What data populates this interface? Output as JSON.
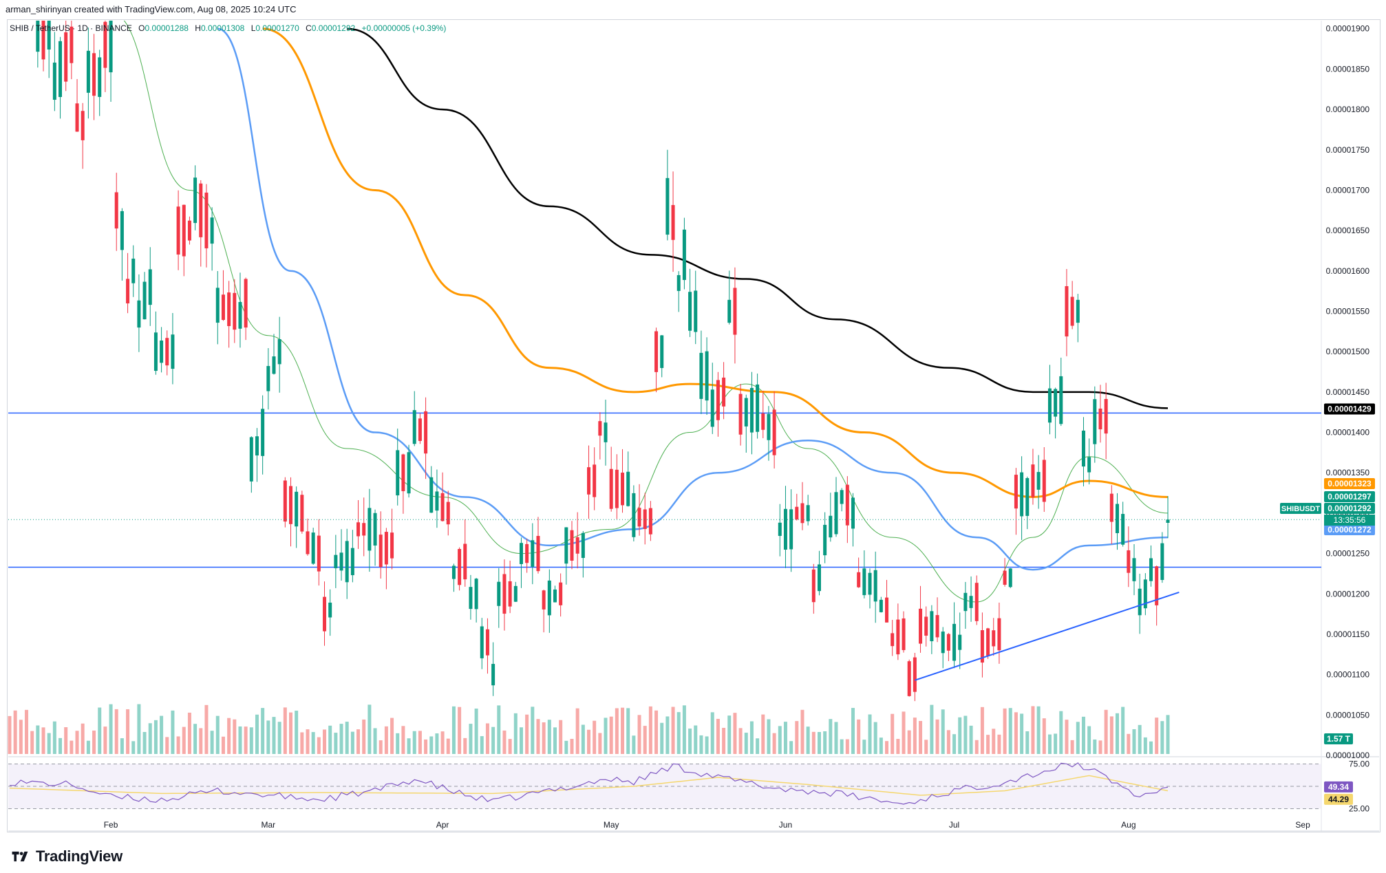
{
  "header": {
    "caption": "arman_shirinyan created with TradingView.com, Aug 08, 2025 10:24 UTC"
  },
  "legend": {
    "symbol": "SHIB / TetherUS · 1D · BINANCE",
    "open_label": "O",
    "open": "0.00001288",
    "high_label": "H",
    "high": "0.00001308",
    "low_label": "L",
    "low": "0.00001270",
    "close_label": "C",
    "close": "0.00001292",
    "change": "+0.00000005 (+0.39%)"
  },
  "footer": {
    "brand": "TradingView"
  },
  "colors": {
    "up": "#089981",
    "down": "#f23645",
    "up_vol": "#8fd3c8",
    "down_vol": "#f7a9a7",
    "ma_fast": "#4caf50",
    "ma_blue": "#5b9cf6",
    "ma_orange": "#ff9800",
    "ma_black": "#000000",
    "level_line": "#2962ff",
    "trend_line": "#2962ff",
    "rsi": "#7e57c2",
    "rsi_ma": "#f5d76e"
  },
  "chart_data": {
    "type": "candlestick",
    "symbol": "SHIBUSDT",
    "timeframe": "1D",
    "ylim": [
      1e-05,
      1.91e-05
    ],
    "x_labels": [
      "Feb",
      "Mar",
      "Apr",
      "May",
      "Jun",
      "Jul",
      "Aug",
      "Sep"
    ],
    "y_ticks": [
      "0.00001900",
      "0.00001850",
      "0.00001800",
      "0.00001750",
      "0.00001700",
      "0.00001650",
      "0.00001600",
      "0.00001550",
      "0.00001500",
      "0.00001450",
      "0.00001400",
      "0.00001350",
      "0.00001300",
      "0.00001250",
      "0.00001200",
      "0.00001150",
      "0.00001100",
      "0.00001050",
      "0.00001000"
    ],
    "price_tags": [
      {
        "label": "0.00001429",
        "value": 1.429e-05,
        "color": "#000000"
      },
      {
        "label": "0.00001323",
        "value": 1.323e-05,
        "color": "#ff9800"
      },
      {
        "label": "0.00001297",
        "value": 1.297e-05,
        "color": "#089981"
      },
      {
        "label": "0.00001292",
        "value": 1.292e-05,
        "color": "#089981"
      },
      {
        "label": "0.00001272",
        "value": 1.272e-05,
        "color": "#5b9cf6"
      }
    ],
    "current_tag": {
      "symbol": "SHIBUSDT",
      "countdown": "13:35:56"
    },
    "volume_tag": "1.57 T",
    "horizontal_levels": [
      1.424e-05,
      1.233e-05
    ],
    "trendline": {
      "from": [
        "2025-06-24",
        1.093e-05
      ],
      "to": [
        "2025-08-10",
        1.202e-05
      ]
    },
    "ohlc_anchors": [
      [
        "2025-01-15",
        1.96e-05,
        2.12e-05
      ],
      [
        "2025-01-18",
        2.05e-05,
        1.89e-05
      ],
      [
        "2025-01-21",
        1.9e-05,
        1.82e-05
      ],
      [
        "2025-01-25",
        1.88e-05,
        1.8e-05
      ],
      [
        "2025-01-27",
        1.78e-05,
        1.85e-05
      ],
      [
        "2025-01-30",
        1.84e-05,
        1.88e-05
      ],
      [
        "2025-02-01",
        1.88e-05,
        1.7e-05
      ],
      [
        "2025-02-03",
        1.65e-05,
        1.55e-05
      ],
      [
        "2025-02-05",
        1.6e-05,
        1.53e-05
      ],
      [
        "2025-02-08",
        1.58e-05,
        1.5e-05
      ],
      [
        "2025-02-12",
        1.5e-05,
        1.65e-05
      ],
      [
        "2025-02-15",
        1.65e-05,
        1.7e-05
      ],
      [
        "2025-02-19",
        1.65e-05,
        1.56e-05
      ],
      [
        "2025-02-23",
        1.55e-05,
        1.53e-05
      ],
      [
        "2025-02-25",
        1.56e-05,
        1.35e-05
      ],
      [
        "2025-02-28",
        1.4e-05,
        1.45e-05
      ],
      [
        "2025-03-03",
        1.5e-05,
        1.32e-05
      ],
      [
        "2025-03-07",
        1.3e-05,
        1.27e-05
      ],
      [
        "2025-03-10",
        1.25e-05,
        1.17e-05
      ],
      [
        "2025-03-12",
        1.18e-05,
        1.24e-05
      ],
      [
        "2025-03-16",
        1.24e-05,
        1.28e-05
      ],
      [
        "2025-03-20",
        1.28e-05,
        1.25e-05
      ],
      [
        "2025-03-23",
        1.26e-05,
        1.35e-05
      ],
      [
        "2025-03-26",
        1.35e-05,
        1.41e-05
      ],
      [
        "2025-03-29",
        1.4e-05,
        1.33e-05
      ],
      [
        "2025-04-02",
        1.3e-05,
        1.22e-05
      ],
      [
        "2025-04-05",
        1.24e-05,
        1.19e-05
      ],
      [
        "2025-04-07",
        1.2e-05,
        1.14e-05
      ],
      [
        "2025-04-09",
        1.14e-05,
        1.1e-05
      ],
      [
        "2025-04-10",
        1.1e-05,
        1.2e-05
      ],
      [
        "2025-04-14",
        1.2e-05,
        1.25e-05
      ],
      [
        "2025-04-18",
        1.25e-05,
        1.19e-05
      ],
      [
        "2025-04-22",
        1.2e-05,
        1.26e-05
      ],
      [
        "2025-04-26",
        1.26e-05,
        1.34e-05
      ],
      [
        "2025-04-28",
        1.34e-05,
        1.41e-05
      ],
      [
        "2025-04-30",
        1.4e-05,
        1.33e-05
      ],
      [
        "2025-05-04",
        1.33e-05,
        1.3e-05
      ],
      [
        "2025-05-08",
        1.29e-05,
        1.5e-05
      ],
      [
        "2025-05-10",
        1.5e-05,
        1.7e-05
      ],
      [
        "2025-05-12",
        1.66e-05,
        1.55e-05
      ],
      [
        "2025-05-14",
        1.62e-05,
        1.55e-05
      ],
      [
        "2025-05-16",
        1.55e-05,
        1.47e-05
      ],
      [
        "2025-05-18",
        1.47e-05,
        1.42e-05
      ],
      [
        "2025-05-21",
        1.45e-05,
        1.55e-05
      ],
      [
        "2025-05-23",
        1.55e-05,
        1.42e-05
      ],
      [
        "2025-05-27",
        1.43e-05,
        1.42e-05
      ],
      [
        "2025-05-30",
        1.4e-05,
        1.28e-05
      ],
      [
        "2025-06-02",
        1.28e-05,
        1.3e-05
      ],
      [
        "2025-06-05",
        1.3e-05,
        1.2e-05
      ],
      [
        "2025-06-07",
        1.22e-05,
        1.25e-05
      ],
      [
        "2025-06-10",
        1.3e-05,
        1.33e-05
      ],
      [
        "2025-06-13",
        1.3e-05,
        1.22e-05
      ],
      [
        "2025-06-17",
        1.21e-05,
        1.19e-05
      ],
      [
        "2025-06-19",
        1.18e-05,
        1.14e-05
      ],
      [
        "2025-06-22",
        1.15e-05,
        1.09e-05
      ],
      [
        "2025-06-24",
        1.1e-05,
        1.16e-05
      ],
      [
        "2025-06-28",
        1.16e-05,
        1.14e-05
      ],
      [
        "2025-07-02",
        1.14e-05,
        1.19e-05
      ],
      [
        "2025-07-05",
        1.19e-05,
        1.13e-05
      ],
      [
        "2025-07-09",
        1.15e-05,
        1.22e-05
      ],
      [
        "2025-07-11",
        1.22e-05,
        1.33e-05
      ],
      [
        "2025-07-14",
        1.32e-05,
        1.34e-05
      ],
      [
        "2025-07-17",
        1.34e-05,
        1.43e-05
      ],
      [
        "2025-07-20",
        1.44e-05,
        1.55e-05
      ],
      [
        "2025-07-22",
        1.55e-05,
        1.55e-05
      ],
      [
        "2025-07-23",
        1.55e-05,
        1.4e-05
      ],
      [
        "2025-07-25",
        1.36e-05,
        1.41e-05
      ],
      [
        "2025-07-28",
        1.42e-05,
        1.32e-05
      ],
      [
        "2025-07-31",
        1.28e-05,
        1.25e-05
      ],
      [
        "2025-08-02",
        1.23e-05,
        1.18e-05
      ],
      [
        "2025-08-04",
        1.2e-05,
        1.25e-05
      ],
      [
        "2025-08-06",
        1.21e-05,
        1.24e-05
      ],
      [
        "2025-08-07",
        1.24e-05,
        1.29e-05
      ],
      [
        "2025-08-08",
        1.288e-05,
        1.292e-05
      ]
    ],
    "moving_averages": [
      {
        "color": "#4caf50",
        "points": [
          [
            "2025-02-01",
            1.92e-05
          ],
          [
            "2025-02-15",
            1.7e-05
          ],
          [
            "2025-03-01",
            1.52e-05
          ],
          [
            "2025-03-15",
            1.38e-05
          ],
          [
            "2025-04-01",
            1.32e-05
          ],
          [
            "2025-04-15",
            1.25e-05
          ],
          [
            "2025-05-01",
            1.28e-05
          ],
          [
            "2025-05-15",
            1.4e-05
          ],
          [
            "2025-05-25",
            1.46e-05
          ],
          [
            "2025-06-05",
            1.38e-05
          ],
          [
            "2025-06-20",
            1.27e-05
          ],
          [
            "2025-07-05",
            1.19e-05
          ],
          [
            "2025-07-15",
            1.27e-05
          ],
          [
            "2025-07-25",
            1.37e-05
          ],
          [
            "2025-08-08",
            1.3e-05
          ]
        ]
      },
      {
        "color": "#5b9cf6",
        "points": [
          [
            "2025-02-20",
            1.9e-05
          ],
          [
            "2025-03-05",
            1.6e-05
          ],
          [
            "2025-03-20",
            1.4e-05
          ],
          [
            "2025-04-05",
            1.32e-05
          ],
          [
            "2025-04-20",
            1.26e-05
          ],
          [
            "2025-05-05",
            1.28e-05
          ],
          [
            "2025-05-20",
            1.35e-05
          ],
          [
            "2025-06-05",
            1.39e-05
          ],
          [
            "2025-06-20",
            1.35e-05
          ],
          [
            "2025-07-05",
            1.27e-05
          ],
          [
            "2025-07-15",
            1.23e-05
          ],
          [
            "2025-07-25",
            1.26e-05
          ],
          [
            "2025-08-08",
            1.27e-05
          ]
        ]
      },
      {
        "color": "#ff9800",
        "points": [
          [
            "2025-02-28",
            1.9e-05
          ],
          [
            "2025-03-20",
            1.7e-05
          ],
          [
            "2025-04-05",
            1.57e-05
          ],
          [
            "2025-04-20",
            1.48e-05
          ],
          [
            "2025-05-05",
            1.45e-05
          ],
          [
            "2025-05-15",
            1.46e-05
          ],
          [
            "2025-05-30",
            1.45e-05
          ],
          [
            "2025-06-15",
            1.4e-05
          ],
          [
            "2025-07-01",
            1.35e-05
          ],
          [
            "2025-07-15",
            1.32e-05
          ],
          [
            "2025-07-25",
            1.34e-05
          ],
          [
            "2025-08-08",
            1.32e-05
          ]
        ]
      },
      {
        "color": "#000000",
        "points": [
          [
            "2025-03-15",
            1.9e-05
          ],
          [
            "2025-04-01",
            1.8e-05
          ],
          [
            "2025-04-20",
            1.68e-05
          ],
          [
            "2025-05-08",
            1.62e-05
          ],
          [
            "2025-05-25",
            1.59e-05
          ],
          [
            "2025-06-10",
            1.54e-05
          ],
          [
            "2025-06-30",
            1.48e-05
          ],
          [
            "2025-07-15",
            1.45e-05
          ],
          [
            "2025-07-25",
            1.45e-05
          ],
          [
            "2025-08-08",
            1.43e-05
          ]
        ]
      }
    ],
    "rsi": {
      "ylim": [
        20,
        80
      ],
      "ticks": [
        "75.00",
        "25.00"
      ],
      "value_tag": "49.34",
      "ma_tag": "44.29",
      "points": [
        [
          "2025-01-14",
          55
        ],
        [
          "2025-01-25",
          52
        ],
        [
          "2025-02-01",
          38
        ],
        [
          "2025-02-10",
          35
        ],
        [
          "2025-02-20",
          45
        ],
        [
          "2025-03-01",
          40
        ],
        [
          "2025-03-10",
          35
        ],
        [
          "2025-03-20",
          45
        ],
        [
          "2025-03-27",
          58
        ],
        [
          "2025-04-05",
          40
        ],
        [
          "2025-04-10",
          33
        ],
        [
          "2025-04-20",
          45
        ],
        [
          "2025-04-30",
          58
        ],
        [
          "2025-05-05",
          55
        ],
        [
          "2025-05-12",
          73
        ],
        [
          "2025-05-20",
          60
        ],
        [
          "2025-05-30",
          48
        ],
        [
          "2025-06-10",
          42
        ],
        [
          "2025-06-22",
          30
        ],
        [
          "2025-07-01",
          45
        ],
        [
          "2025-07-10",
          55
        ],
        [
          "2025-07-20",
          72
        ],
        [
          "2025-07-23",
          75
        ],
        [
          "2025-07-28",
          60
        ],
        [
          "2025-08-03",
          38
        ],
        [
          "2025-08-08",
          49
        ]
      ],
      "ma_points": [
        [
          "2025-01-14",
          48
        ],
        [
          "2025-02-10",
          42
        ],
        [
          "2025-03-10",
          43
        ],
        [
          "2025-04-10",
          42
        ],
        [
          "2025-05-05",
          50
        ],
        [
          "2025-05-20",
          60
        ],
        [
          "2025-06-05",
          52
        ],
        [
          "2025-06-25",
          40
        ],
        [
          "2025-07-10",
          45
        ],
        [
          "2025-07-25",
          62
        ],
        [
          "2025-08-08",
          45
        ]
      ]
    }
  }
}
